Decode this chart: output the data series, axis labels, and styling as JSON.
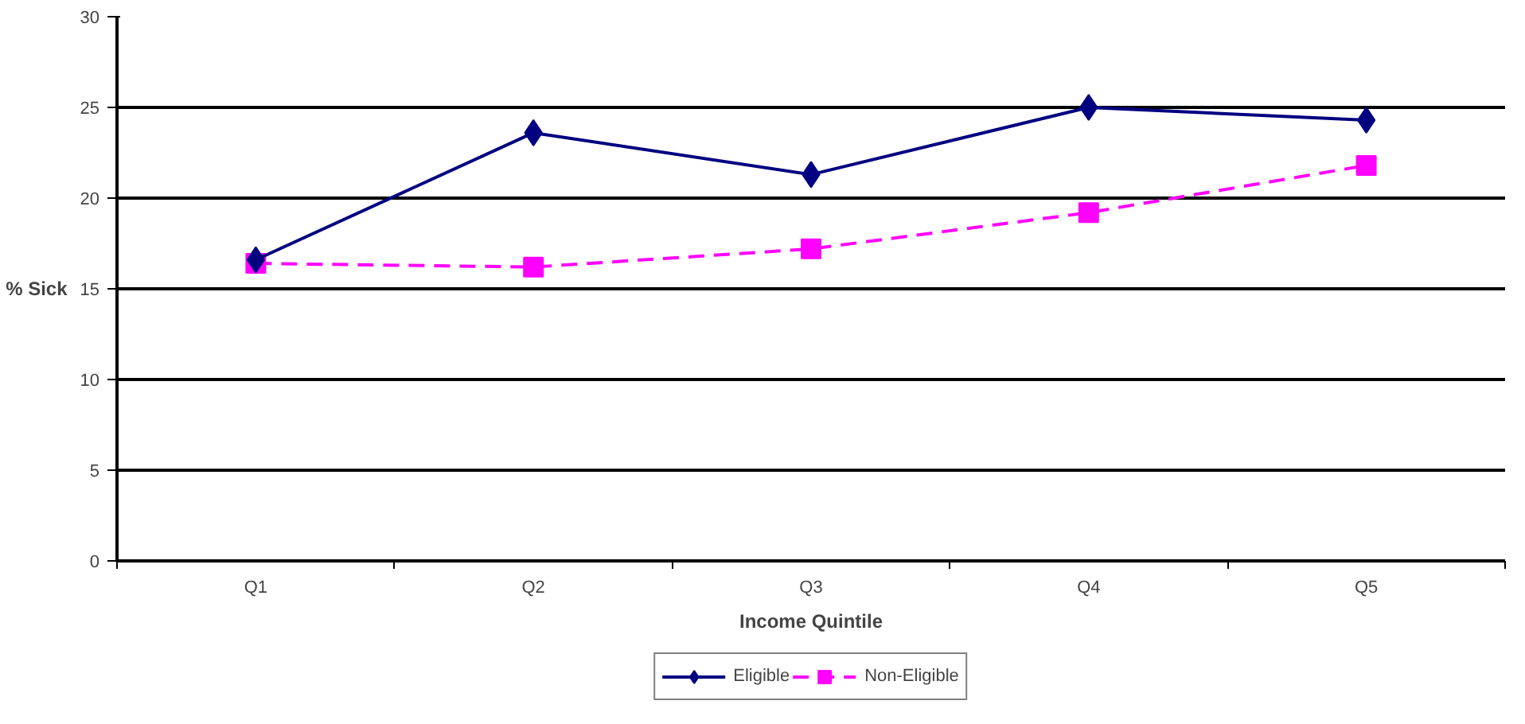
{
  "chart_data": {
    "type": "line",
    "xlabel": "Income Quintile",
    "ylabel": "% Sick",
    "categories": [
      "Q1",
      "Q2",
      "Q3",
      "Q4",
      "Q5"
    ],
    "series": [
      {
        "name": "Eligible",
        "color": "#000080",
        "values": [
          16.6,
          23.6,
          21.3,
          25.0,
          24.3
        ],
        "marker": "diamond",
        "line_style": "solid"
      },
      {
        "name": "Non-Eligible",
        "color": "#ff00ff",
        "values": [
          16.4,
          16.2,
          17.2,
          19.2,
          21.8
        ],
        "marker": "square",
        "line_style": "dashed"
      }
    ],
    "ylim": [
      0,
      30
    ],
    "yticks": [
      0,
      5,
      10,
      15,
      20,
      25,
      30
    ],
    "grid": "y",
    "legend": "bottom"
  }
}
